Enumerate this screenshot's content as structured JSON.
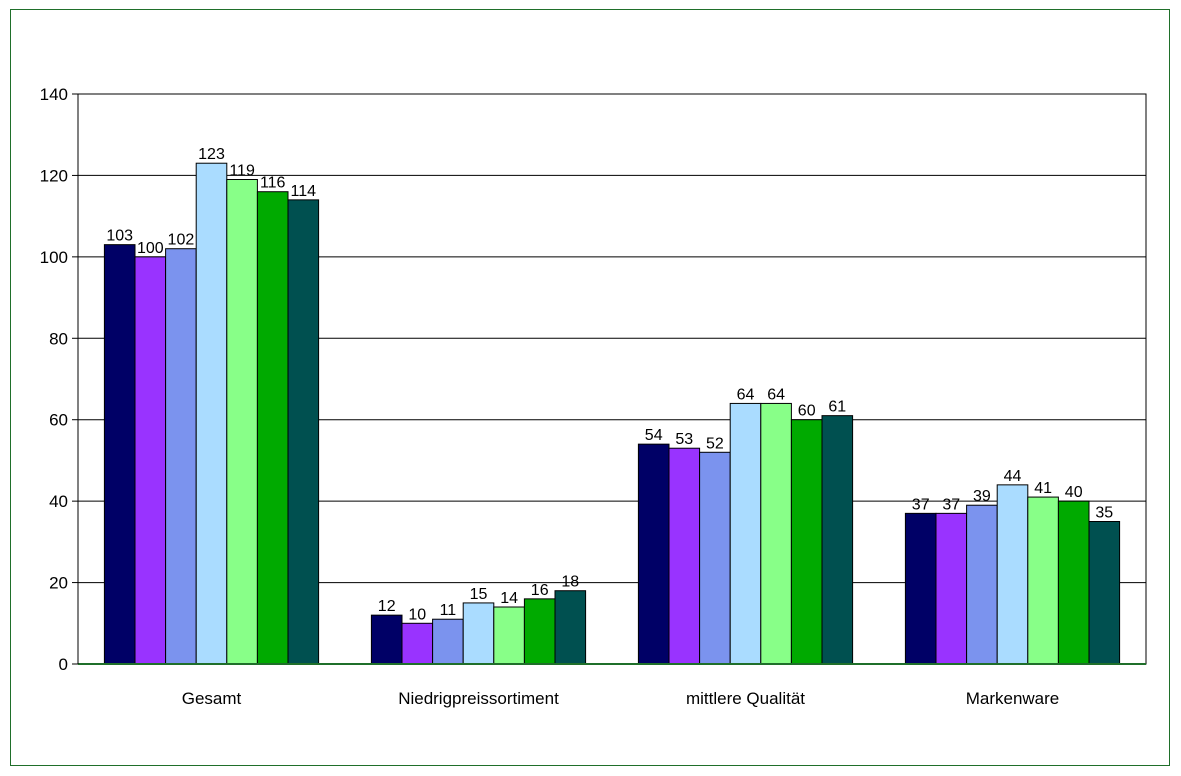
{
  "chart_data": {
    "type": "bar",
    "title": "",
    "xlabel": "",
    "ylabel": "",
    "ylim": [
      0,
      140
    ],
    "yticks": [
      0,
      20,
      40,
      60,
      80,
      100,
      120,
      140
    ],
    "grid": true,
    "legend": "none",
    "categories": [
      "Gesamt",
      "Niedrigpreissortiment",
      "mittlere Qualität",
      "Markenware"
    ],
    "series": [
      {
        "color": "#000066",
        "values": [
          103,
          12,
          54,
          37
        ]
      },
      {
        "color": "#9933ff",
        "values": [
          100,
          10,
          53,
          37
        ]
      },
      {
        "color": "#7b93ee",
        "values": [
          102,
          11,
          52,
          39
        ]
      },
      {
        "color": "#aadcff",
        "values": [
          123,
          15,
          64,
          44
        ]
      },
      {
        "color": "#88ff88",
        "values": [
          119,
          14,
          64,
          41
        ]
      },
      {
        "color": "#00aa00",
        "values": [
          116,
          16,
          60,
          40
        ]
      },
      {
        "color": "#005050",
        "values": [
          114,
          18,
          61,
          35
        ]
      }
    ]
  }
}
